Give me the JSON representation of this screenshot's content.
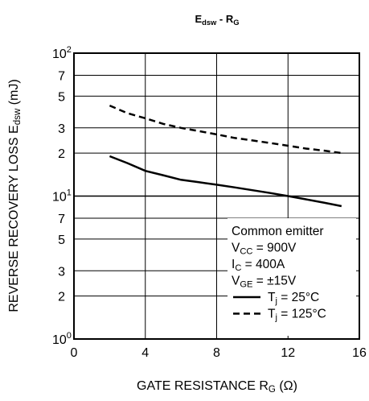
{
  "chart_data": {
    "type": "line",
    "title": {
      "main": "E",
      "sub": "dsw",
      "tail": " - R",
      "sub2": "G"
    },
    "xlabel": {
      "main": "GATE RESISTANCE  R",
      "sub": "G",
      "tail": " (Ω)"
    },
    "ylabel": {
      "main": "REVERSE RECOVERY LOSS  E",
      "sub": "dsw",
      "tail": " (mJ)"
    },
    "xlim": [
      0,
      16
    ],
    "ylim": [
      1,
      100
    ],
    "yscale": "log",
    "grid": true,
    "x_ticks": [
      {
        "value": 0,
        "label": "0"
      },
      {
        "value": 4,
        "label": "4"
      },
      {
        "value": 8,
        "label": "8"
      },
      {
        "value": 12,
        "label": "12"
      },
      {
        "value": 16,
        "label": "16"
      }
    ],
    "y_ticks": [
      {
        "value": 1,
        "base": "10",
        "exp": "0"
      },
      {
        "value": 2,
        "label": "2"
      },
      {
        "value": 3,
        "label": "3"
      },
      {
        "value": 5,
        "label": "5"
      },
      {
        "value": 7,
        "label": "7"
      },
      {
        "value": 10,
        "base": "10",
        "exp": "1"
      },
      {
        "value": 20,
        "label": "2"
      },
      {
        "value": 30,
        "label": "3"
      },
      {
        "value": 50,
        "label": "5"
      },
      {
        "value": 70,
        "label": "7"
      },
      {
        "value": 100,
        "base": "10",
        "exp": "2"
      }
    ],
    "series": [
      {
        "name": "Tj = 25°C",
        "style": "solid",
        "x": [
          2,
          3,
          4,
          5,
          6,
          7,
          8,
          9,
          10,
          11,
          12,
          13,
          14,
          15
        ],
        "values": [
          19,
          17,
          15,
          14,
          13,
          12.5,
          12,
          11.5,
          11,
          10.5,
          10,
          9.5,
          9,
          8.5
        ]
      },
      {
        "name": "Tj = 125°C",
        "style": "dashed",
        "x": [
          2,
          3,
          4,
          5,
          6,
          7,
          8,
          9,
          10,
          11,
          12,
          13,
          14,
          15
        ],
        "values": [
          43,
          38,
          35,
          32,
          30,
          28.5,
          27,
          25.5,
          24.5,
          23.5,
          22.5,
          21.5,
          20.8,
          20
        ]
      }
    ],
    "legend": {
      "placement": "bottom-right",
      "conditions": [
        {
          "main": "Common emitter"
        },
        {
          "main": "V",
          "sub": "CC",
          "tail": " = 900V"
        },
        {
          "main": "I",
          "sub": "C",
          "tail": " = 400A"
        },
        {
          "main": "V",
          "sub": "GE",
          "tail": " = ±15V"
        }
      ],
      "entries": [
        {
          "main": "T",
          "sub": "j",
          "tail": " = 25°C",
          "style": "solid"
        },
        {
          "main": "T",
          "sub": "j",
          "tail": " = 125°C",
          "style": "dashed"
        }
      ]
    }
  }
}
